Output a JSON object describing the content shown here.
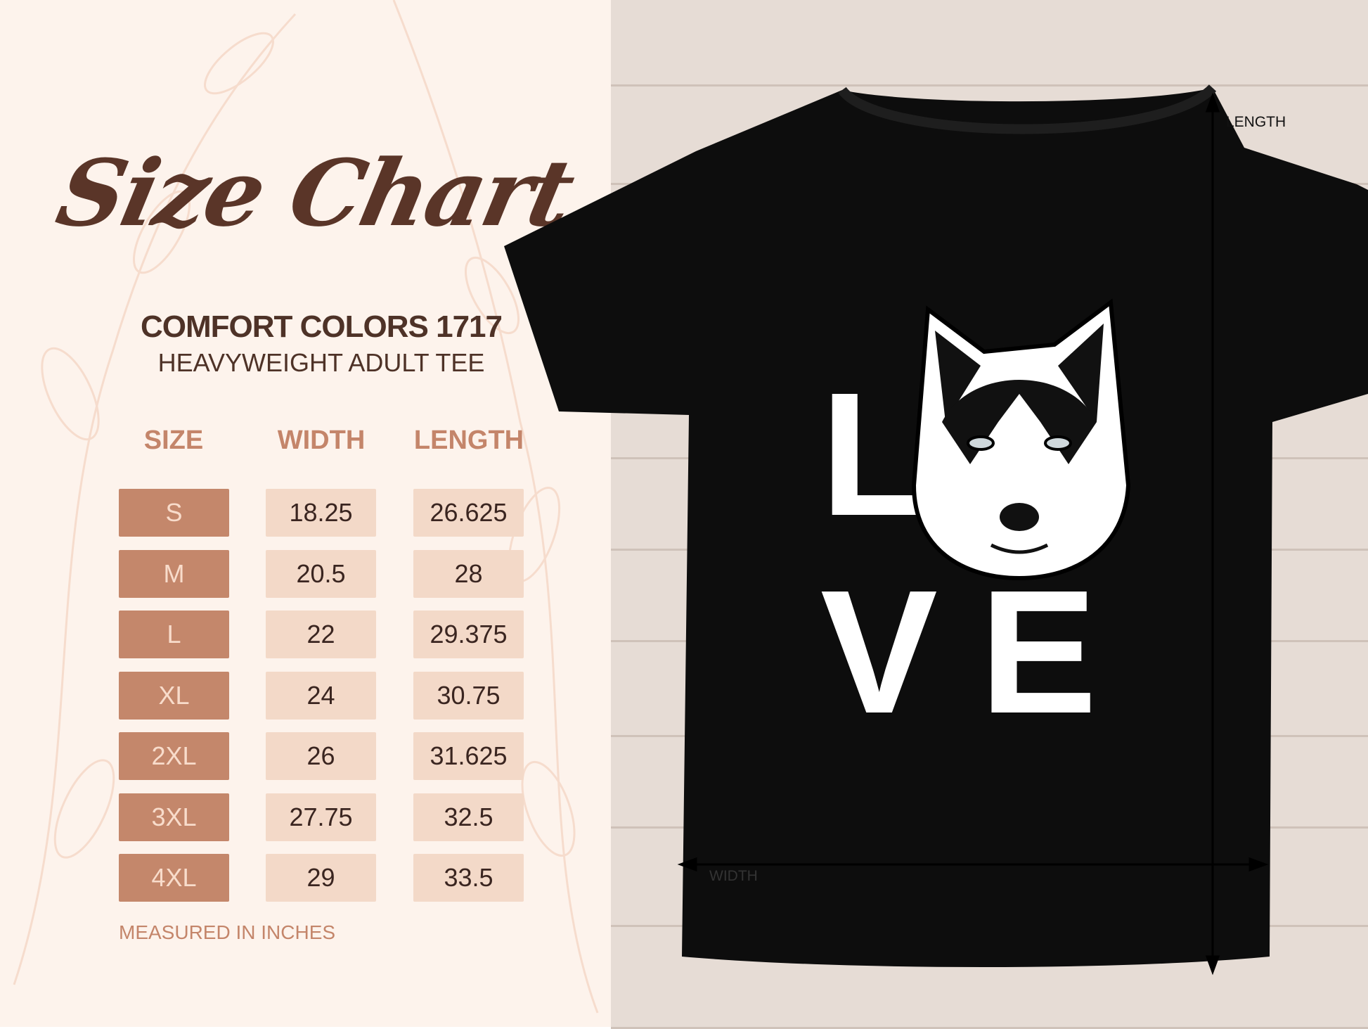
{
  "title": "Size Chart",
  "product": {
    "line1": "COMFORT COLORS 1717",
    "line2": "HEAVYWEIGHT ADULT TEE"
  },
  "table": {
    "headers": [
      "SIZE",
      "WIDTH",
      "LENGTH"
    ],
    "rows": [
      {
        "size": "S",
        "width": "18.25",
        "length": "26.625"
      },
      {
        "size": "M",
        "width": "20.5",
        "length": "28"
      },
      {
        "size": "L",
        "width": "22",
        "length": "29.375"
      },
      {
        "size": "XL",
        "width": "24",
        "length": "30.75"
      },
      {
        "size": "2XL",
        "width": "26",
        "length": "31.625"
      },
      {
        "size": "3XL",
        "width": "27.75",
        "length": "32.5"
      },
      {
        "size": "4XL",
        "width": "29",
        "length": "33.5"
      }
    ]
  },
  "footer": "MEASURED IN INCHES",
  "shirt": {
    "design_text_top": "L",
    "design_text_bottom": "VE",
    "design_word": "LOVE",
    "shirt_color": "#0d0d0d"
  },
  "measure": {
    "length_label": "LENGTH",
    "width_label": "WIDTH"
  },
  "colors": {
    "accent": "#c4876b",
    "cell": "#f3d9c8",
    "text_dark": "#4e3227",
    "background": "#fdf3ec"
  }
}
